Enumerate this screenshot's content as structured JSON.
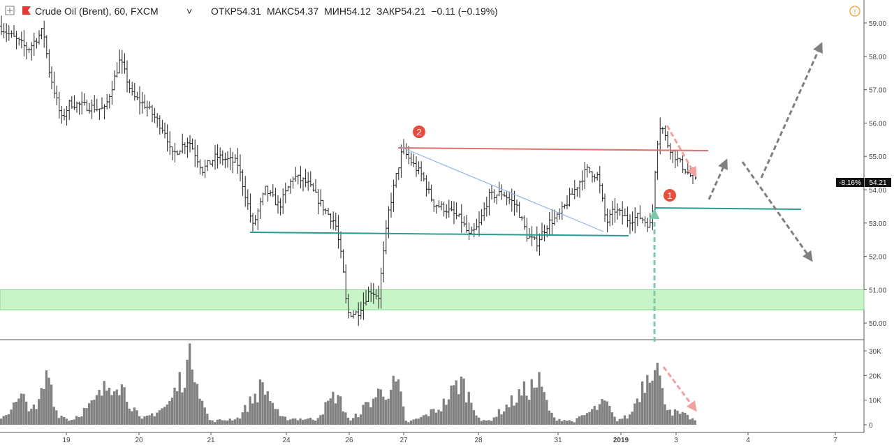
{
  "header": {
    "symbol": "Crude Oil (Brent), 60, FXCM",
    "chevron": "˅",
    "open_label": "ОТКР",
    "open": "54.31",
    "high_label": "МАКС",
    "high": "54.37",
    "low_label": "МИН",
    "low": "54.12",
    "close_label": "ЗАКР",
    "close": "54.21",
    "change": "−0.11 (−0.19%)"
  },
  "icons": {
    "expand": "expand-icon",
    "symbol_marker": "red-flag-icon",
    "alert": "alert-icon"
  },
  "price_badge": {
    "pct": "-8.16%",
    "value": "54.21"
  },
  "markers": {
    "one": "1",
    "two": "2"
  },
  "chart_data": [
    {
      "type": "ohlc",
      "ylim": [
        49.6,
        59.4
      ],
      "yticks": [
        "59.00",
        "58.00",
        "57.00",
        "56.00",
        "55.00",
        "54.00",
        "53.00",
        "52.00",
        "51.00",
        "50.00"
      ],
      "xticks": [
        "19",
        "20",
        "21",
        "24",
        "26",
        "27",
        "28",
        "31",
        "2019",
        "3",
        "4",
        "7"
      ],
      "support_zone": [
        50.4,
        51.0
      ],
      "levels": {
        "resistance": 55.15,
        "support": 52.7,
        "breakout": 53.45
      },
      "key_points": [
        {
          "x": "19",
          "close": 56.0
        },
        {
          "x": "20",
          "close": 56.7
        },
        {
          "x": "21",
          "close": 54.8
        },
        {
          "x": "24",
          "close": 54.2
        },
        {
          "x": "26",
          "close": 50.2
        },
        {
          "x": "27",
          "close": 55.2
        },
        {
          "x": "28",
          "close": 53.6
        },
        {
          "x": "31",
          "close": 54.5
        },
        {
          "x": "2019",
          "close": 53.1
        },
        {
          "x": "3",
          "close": 54.21
        }
      ]
    },
    {
      "type": "bar",
      "title": "",
      "ylim": [
        0,
        33000
      ],
      "yticks": [
        "30K",
        "20K",
        "10K",
        "0"
      ],
      "peak": 32000
    }
  ]
}
